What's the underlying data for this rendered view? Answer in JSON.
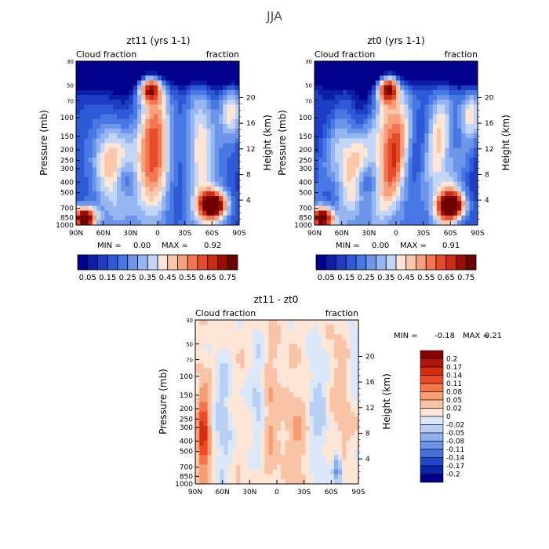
{
  "figure": {
    "title": "JJA"
  },
  "chart_data": [
    {
      "type": "heatmap",
      "title": "zt11 (yrs 1-1)",
      "left_label": "Cloud fraction",
      "right_label": "fraction",
      "ylabel": "Pressure (mb)",
      "y2label": "Height (km)",
      "x_ticks": [
        "90N",
        "60N",
        "30N",
        "0",
        "30S",
        "60S",
        "90S"
      ],
      "y_ticks": [
        "30",
        "50",
        "70",
        "100",
        "150",
        "200",
        "250",
        "300",
        "400",
        "500",
        "700",
        "850",
        "1000"
      ],
      "y2_ticks": [
        "20",
        "16",
        "12",
        "8",
        "4"
      ],
      "stats": {
        "min_label": "MIN =",
        "min": "0.00",
        "max_label": "MAX =",
        "max": "0.92"
      },
      "colorbar_labels": [
        "0.05",
        "0.15",
        "0.25",
        "0.35",
        "0.45",
        "0.55",
        "0.65",
        "0.75"
      ],
      "value_range": [
        0.0,
        0.92
      ]
    },
    {
      "type": "heatmap",
      "title": "zt0 (yrs 1-1)",
      "left_label": "Cloud fraction",
      "right_label": "fraction",
      "ylabel": "Pressure (mb)",
      "y2label": "Height (km)",
      "x_ticks": [
        "90N",
        "60N",
        "30N",
        "0",
        "30S",
        "60S",
        "90S"
      ],
      "y_ticks": [
        "30",
        "50",
        "70",
        "100",
        "150",
        "200",
        "250",
        "300",
        "400",
        "500",
        "700",
        "850",
        "1000"
      ],
      "y2_ticks": [
        "20",
        "16",
        "12",
        "8",
        "4"
      ],
      "stats": {
        "min_label": "MIN =",
        "min": "0.00",
        "max_label": "MAX =",
        "max": "0.91"
      },
      "colorbar_labels": [
        "0.05",
        "0.15",
        "0.25",
        "0.35",
        "0.45",
        "0.55",
        "0.65",
        "0.75"
      ],
      "value_range": [
        0.0,
        0.91
      ]
    },
    {
      "type": "heatmap",
      "title": "zt11 - zt0",
      "left_label": "Cloud fraction",
      "right_label": "fraction",
      "ylabel": "Pressure (mb)",
      "y2label": "Height (km)",
      "x_ticks": [
        "90N",
        "60N",
        "30N",
        "0",
        "30S",
        "60S",
        "90S"
      ],
      "y_ticks": [
        "30",
        "50",
        "70",
        "100",
        "150",
        "200",
        "250",
        "300",
        "400",
        "500",
        "700",
        "850",
        "1000"
      ],
      "y2_ticks": [
        "20",
        "16",
        "12",
        "8",
        "4"
      ],
      "stats": {
        "min_label": "MIN =",
        "min": "-0.18",
        "max_label": "MAX =",
        "max": "0.21"
      },
      "colorbar_labels": [
        "0.2",
        "0.17",
        "0.14",
        "0.11",
        "0.08",
        "0.05",
        "0.02",
        "0",
        "-0.02",
        "-0.05",
        "-0.08",
        "-0.11",
        "-0.14",
        "-0.17",
        "-0.2"
      ],
      "value_range": [
        -0.18,
        0.21
      ]
    }
  ],
  "colors": {
    "levels_abs": [
      "#00008c",
      "#0a1ea6",
      "#1d3ec4",
      "#2e5ad8",
      "#4878e3",
      "#6d96eb",
      "#96b6f1",
      "#c2d6f7",
      "#fde6d6",
      "#fbc7ab",
      "#f7a07c",
      "#f37552",
      "#e84b2b",
      "#cf2a12",
      "#9a0f05",
      "#6e0000"
    ],
    "levels_diff": [
      "#8b0000",
      "#b01508",
      "#d62d10",
      "#ef4a24",
      "#f57548",
      "#f79d74",
      "#f9c4a6",
      "#fde6d6",
      "#dbe8fa",
      "#b9d0f5",
      "#8fb1ee",
      "#6a92e6",
      "#4670dc",
      "#2149c7",
      "#0b24a5",
      "#00008c"
    ]
  }
}
